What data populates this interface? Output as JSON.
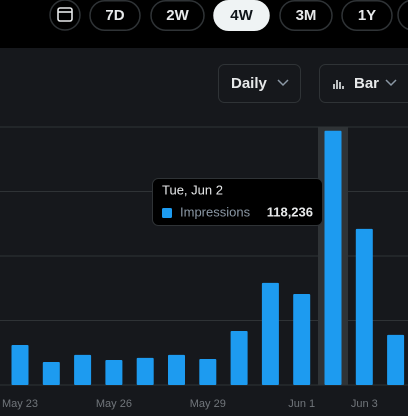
{
  "toolbar": {
    "ranges": [
      "7D",
      "2W",
      "4W",
      "3M",
      "1Y"
    ],
    "selected": "4W"
  },
  "controls": {
    "interval": "Daily",
    "chart_style": "Bar"
  },
  "chart_data": {
    "type": "bar",
    "categories": [
      "May 23",
      null,
      null,
      "May 26",
      null,
      null,
      "May 29",
      null,
      null,
      "Jun 1",
      null,
      "Jun 3",
      null
    ],
    "series": [
      {
        "name": "Impressions",
        "color": "#1d9bf0",
        "values": [
          18600,
          10700,
          14000,
          11600,
          12600,
          14000,
          12100,
          25100,
          47500,
          42300,
          118236,
          72600,
          23300
        ],
        "value_labels": [
          null,
          null,
          null,
          null,
          null,
          null,
          null,
          null,
          null,
          null,
          "118,236",
          null,
          null
        ]
      }
    ],
    "ylim": [
      0,
      120000
    ],
    "yticks": [
      0,
      30000,
      60000,
      90000,
      120000
    ],
    "grid": true,
    "tooltip": {
      "title": "Tue, Jun 2",
      "index": 10
    }
  }
}
